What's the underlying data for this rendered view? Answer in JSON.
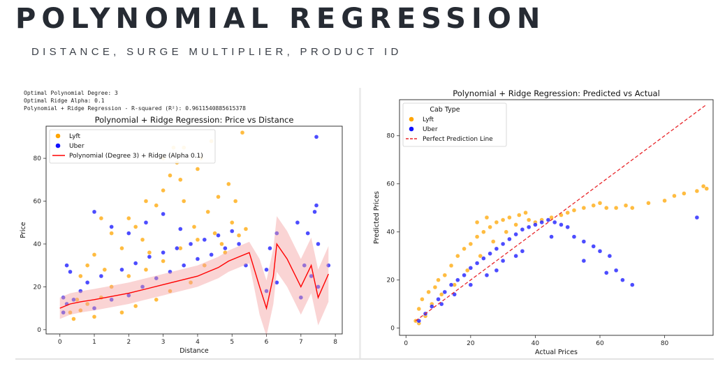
{
  "header": {
    "title": "POLYNOMIAL REGRESSION",
    "subtitle": "DISTANCE, SURGE MULTIPLIER, PRODUCT ID"
  },
  "console_output": [
    "Optimal Polynomial Degree: 3",
    "Optimal Ridge Alpha: 0.1",
    "Polynomial + Ridge Regression - R-squared (R²): 0.9611540885615378"
  ],
  "colors": {
    "lyft": "#ffa500",
    "uber": "#1010ff",
    "fit_line": "#ff0000",
    "band": "#f4a0a0",
    "perfect_line": "#e8262a"
  },
  "chart_data": [
    {
      "type": "scatter",
      "title": "Polynomial + Ridge Regression: Price vs Distance",
      "xlabel": "Distance",
      "ylabel": "Price",
      "xlim": [
        -0.4,
        8.2
      ],
      "ylim": [
        -2,
        95
      ],
      "xticks": [
        0,
        1,
        2,
        3,
        4,
        5,
        6,
        7,
        8
      ],
      "yticks": [
        0,
        20,
        40,
        60,
        80
      ],
      "legend_position": "upper-left",
      "legend": [
        "Lyft",
        "Uber",
        "Polynomial (Degree 3) + Ridge (Alpha 0.1)"
      ],
      "series": [
        {
          "name": "Lyft",
          "kind": "points",
          "points": [
            [
              0.4,
              5
            ],
            [
              0.6,
              9
            ],
            [
              0.8,
              12
            ],
            [
              1.0,
              6
            ],
            [
              1.2,
              15
            ],
            [
              1.5,
              20
            ],
            [
              1.8,
              8
            ],
            [
              2.0,
              25
            ],
            [
              2.2,
              11
            ],
            [
              2.5,
              28
            ],
            [
              2.8,
              14
            ],
            [
              3.0,
              32
            ],
            [
              3.2,
              18
            ],
            [
              3.5,
              38
            ],
            [
              3.8,
              22
            ],
            [
              4.0,
              42
            ],
            [
              4.2,
              30
            ],
            [
              4.5,
              45
            ],
            [
              4.8,
              36
            ],
            [
              5.0,
              50
            ],
            [
              5.2,
              44
            ],
            [
              1.0,
              35
            ],
            [
              1.5,
              45
            ],
            [
              2.0,
              52
            ],
            [
              2.5,
              60
            ],
            [
              3.0,
              65
            ],
            [
              3.2,
              72
            ],
            [
              3.4,
              78
            ],
            [
              3.6,
              85
            ],
            [
              3.0,
              80
            ],
            [
              3.5,
              70
            ],
            [
              4.0,
              75
            ],
            [
              4.1,
              80
            ],
            [
              2.8,
              58
            ],
            [
              2.2,
              48
            ],
            [
              1.2,
              52
            ],
            [
              0.8,
              30
            ],
            [
              0.6,
              25
            ],
            [
              1.8,
              38
            ],
            [
              2.4,
              42
            ],
            [
              3.6,
              60
            ],
            [
              4.3,
              55
            ],
            [
              4.6,
              62
            ],
            [
              4.9,
              68
            ],
            [
              5.1,
              60
            ],
            [
              5.3,
              92
            ],
            [
              4.4,
              88
            ],
            [
              3.3,
              85
            ],
            [
              0.3,
              8
            ],
            [
              0.5,
              14
            ],
            [
              1.3,
              28
            ],
            [
              2.6,
              36
            ],
            [
              3.9,
              48
            ],
            [
              4.7,
              40
            ],
            [
              5.4,
              47
            ]
          ]
        },
        {
          "name": "Uber",
          "kind": "points",
          "points": [
            [
              0.1,
              8
            ],
            [
              0.2,
              12
            ],
            [
              0.4,
              14
            ],
            [
              0.6,
              18
            ],
            [
              0.8,
              22
            ],
            [
              1.0,
              10
            ],
            [
              1.2,
              25
            ],
            [
              1.5,
              14
            ],
            [
              1.8,
              28
            ],
            [
              2.0,
              16
            ],
            [
              2.2,
              31
            ],
            [
              2.4,
              20
            ],
            [
              2.6,
              34
            ],
            [
              2.8,
              24
            ],
            [
              3.0,
              36
            ],
            [
              3.2,
              27
            ],
            [
              3.4,
              38
            ],
            [
              3.6,
              30
            ],
            [
              3.8,
              40
            ],
            [
              4.0,
              33
            ],
            [
              4.2,
              42
            ],
            [
              4.4,
              35
            ],
            [
              4.6,
              44
            ],
            [
              4.8,
              38
            ],
            [
              5.0,
              46
            ],
            [
              5.2,
              40
            ],
            [
              5.4,
              30
            ],
            [
              6.0,
              18
            ],
            [
              6.0,
              28
            ],
            [
              6.1,
              38
            ],
            [
              6.3,
              22
            ],
            [
              6.3,
              45
            ],
            [
              7.0,
              15
            ],
            [
              7.1,
              30
            ],
            [
              7.2,
              45
            ],
            [
              7.3,
              25
            ],
            [
              7.4,
              55
            ],
            [
              7.45,
              58
            ],
            [
              7.5,
              20
            ],
            [
              7.5,
              40
            ],
            [
              7.8,
              30
            ],
            [
              7.45,
              90
            ],
            [
              6.9,
              50
            ],
            [
              1.0,
              55
            ],
            [
              1.5,
              48
            ],
            [
              2.0,
              45
            ],
            [
              2.5,
              50
            ],
            [
              3.0,
              54
            ],
            [
              3.5,
              47
            ],
            [
              0.3,
              27
            ],
            [
              0.1,
              15
            ],
            [
              0.2,
              30
            ]
          ]
        },
        {
          "name": "Polynomial (Degree 3) + Ridge (Alpha 0.1)",
          "kind": "line",
          "points": [
            [
              0.0,
              10
            ],
            [
              0.3,
              12
            ],
            [
              0.6,
              13
            ],
            [
              1.0,
              14
            ],
            [
              1.5,
              15.5
            ],
            [
              2.0,
              17
            ],
            [
              2.5,
              19
            ],
            [
              3.0,
              21
            ],
            [
              3.5,
              23
            ],
            [
              4.0,
              25
            ],
            [
              4.3,
              27
            ],
            [
              4.6,
              29
            ],
            [
              4.9,
              32
            ],
            [
              5.2,
              34
            ],
            [
              5.5,
              36
            ],
            [
              5.8,
              20
            ],
            [
              6.0,
              10
            ],
            [
              6.2,
              25
            ],
            [
              6.3,
              40
            ],
            [
              6.6,
              33
            ],
            [
              7.0,
              20
            ],
            [
              7.3,
              30
            ],
            [
              7.5,
              15
            ],
            [
              7.8,
              26
            ]
          ]
        }
      ]
    },
    {
      "type": "scatter",
      "title": "Polynomial + Ridge Regression: Predicted vs Actual",
      "xlabel": "Actual Prices",
      "ylabel": "Predicted Prices",
      "xlim": [
        -2,
        95
      ],
      "ylim": [
        -3,
        95
      ],
      "xticks": [
        0,
        20,
        40,
        60,
        80
      ],
      "yticks": [
        0,
        20,
        40,
        60,
        80
      ],
      "legend_position": "upper-left",
      "legend_title": "Cab Type",
      "legend": [
        "Lyft",
        "Uber",
        "Perfect Prediction Line"
      ],
      "series": [
        {
          "name": "Lyft",
          "kind": "points",
          "points": [
            [
              3,
              3
            ],
            [
              4,
              8
            ],
            [
              5,
              12
            ],
            [
              7,
              15
            ],
            [
              9,
              17
            ],
            [
              10,
              20
            ],
            [
              12,
              22
            ],
            [
              14,
              26
            ],
            [
              16,
              30
            ],
            [
              18,
              33
            ],
            [
              20,
              35
            ],
            [
              22,
              38
            ],
            [
              24,
              40
            ],
            [
              26,
              42
            ],
            [
              28,
              44
            ],
            [
              30,
              45
            ],
            [
              32,
              46
            ],
            [
              35,
              47
            ],
            [
              38,
              45
            ],
            [
              40,
              44
            ],
            [
              42,
              45
            ],
            [
              45,
              46
            ],
            [
              48,
              47
            ],
            [
              50,
              48
            ],
            [
              52,
              49
            ],
            [
              55,
              50
            ],
            [
              58,
              51
            ],
            [
              60,
              52
            ],
            [
              62,
              50
            ],
            [
              65,
              50
            ],
            [
              68,
              51
            ],
            [
              70,
              50
            ],
            [
              75,
              52
            ],
            [
              80,
              53
            ],
            [
              83,
              55
            ],
            [
              86,
              56
            ],
            [
              90,
              57
            ],
            [
              92,
              59
            ],
            [
              93,
              58
            ],
            [
              4,
              2
            ],
            [
              6,
              5
            ],
            [
              8,
              10
            ],
            [
              11,
              14
            ],
            [
              15,
              18
            ],
            [
              19,
              24
            ],
            [
              23,
              30
            ],
            [
              27,
              36
            ],
            [
              31,
              40
            ],
            [
              34,
              43
            ],
            [
              37,
              48
            ],
            [
              25,
              46
            ],
            [
              22,
              44
            ]
          ]
        },
        {
          "name": "Uber",
          "kind": "points",
          "points": [
            [
              4,
              3
            ],
            [
              6,
              6
            ],
            [
              8,
              9
            ],
            [
              10,
              12
            ],
            [
              12,
              15
            ],
            [
              14,
              18
            ],
            [
              16,
              20
            ],
            [
              18,
              22
            ],
            [
              20,
              25
            ],
            [
              22,
              27
            ],
            [
              24,
              29
            ],
            [
              26,
              31
            ],
            [
              28,
              33
            ],
            [
              30,
              35
            ],
            [
              32,
              37
            ],
            [
              34,
              39
            ],
            [
              36,
              41
            ],
            [
              38,
              42
            ],
            [
              40,
              43
            ],
            [
              42,
              44
            ],
            [
              44,
              45
            ],
            [
              46,
              44
            ],
            [
              48,
              43
            ],
            [
              50,
              42
            ],
            [
              52,
              38
            ],
            [
              55,
              36
            ],
            [
              58,
              34
            ],
            [
              60,
              32
            ],
            [
              63,
              30
            ],
            [
              65,
              24
            ],
            [
              67,
              20
            ],
            [
              70,
              18
            ],
            [
              62,
              23
            ],
            [
              55,
              28
            ],
            [
              45,
              38
            ],
            [
              36,
              32
            ],
            [
              30,
              28
            ],
            [
              25,
              22
            ],
            [
              20,
              18
            ],
            [
              15,
              14
            ],
            [
              11,
              10
            ],
            [
              90,
              46
            ],
            [
              34,
              30
            ],
            [
              28,
              24
            ]
          ]
        },
        {
          "name": "Perfect Prediction Line",
          "kind": "line",
          "points": [
            [
              3,
              3
            ],
            [
              93,
              93
            ]
          ]
        }
      ]
    }
  ]
}
